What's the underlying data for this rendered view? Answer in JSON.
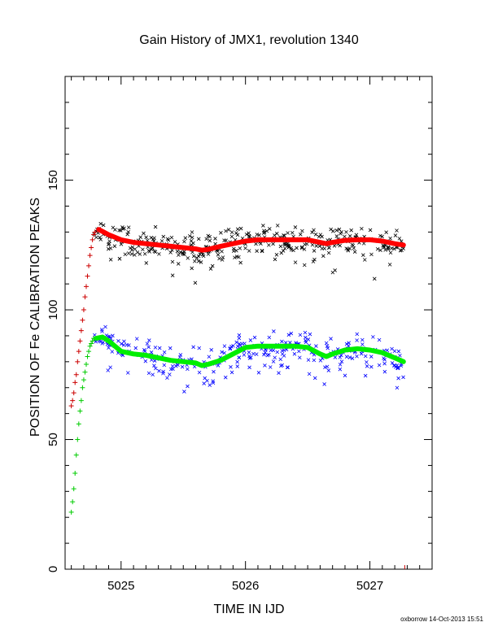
{
  "footer_text": "oxborrow 14-Oct-2013 15:51",
  "chart_data": {
    "type": "scatter",
    "title": "Gain History of JMX1, revolution 1340",
    "xlabel": "TIME IN IJD",
    "ylabel": "POSITION OF Fe CALIBRATION PEAKS",
    "xlim": [
      5024.55,
      5027.5
    ],
    "ylim": [
      0,
      190
    ],
    "xticks": [
      5025,
      5026,
      5027
    ],
    "yticks": [
      0,
      50,
      100,
      150
    ],
    "grid": false,
    "end_marker_x": 5027.28,
    "series": [
      {
        "role": "fit-upper",
        "style": "line",
        "color": "#ff0000",
        "points": [
          [
            4.82,
            131
          ],
          [
            4.9,
            129
          ],
          [
            5.0,
            127
          ],
          [
            5.1,
            126
          ],
          [
            5.2,
            125.5
          ],
          [
            5.3,
            125
          ],
          [
            5.4,
            124.5
          ],
          [
            5.5,
            124
          ],
          [
            5.6,
            123.5
          ],
          [
            5.65,
            123
          ],
          [
            5.7,
            123.3
          ],
          [
            5.8,
            124.5
          ],
          [
            5.9,
            125.5
          ],
          [
            6.0,
            126.5
          ],
          [
            6.1,
            127
          ],
          [
            6.2,
            127
          ],
          [
            6.3,
            127
          ],
          [
            6.4,
            127
          ],
          [
            6.5,
            127
          ],
          [
            6.6,
            126
          ],
          [
            6.65,
            125.5
          ],
          [
            6.7,
            126
          ],
          [
            6.8,
            126.8
          ],
          [
            6.9,
            127
          ],
          [
            7.0,
            127
          ],
          [
            7.1,
            126.5
          ],
          [
            7.2,
            125.5
          ],
          [
            7.27,
            125
          ]
        ]
      },
      {
        "role": "fit-lower",
        "style": "line",
        "color": "#00ee00",
        "points": [
          [
            4.8,
            89
          ],
          [
            4.85,
            89.5
          ],
          [
            4.9,
            88
          ],
          [
            4.95,
            86
          ],
          [
            5.0,
            84
          ],
          [
            5.1,
            83
          ],
          [
            5.2,
            82.5
          ],
          [
            5.3,
            81.5
          ],
          [
            5.4,
            80.5
          ],
          [
            5.5,
            80
          ],
          [
            5.6,
            79.5
          ],
          [
            5.65,
            78.5
          ],
          [
            5.7,
            79
          ],
          [
            5.8,
            80.5
          ],
          [
            5.9,
            83
          ],
          [
            6.0,
            85.5
          ],
          [
            6.1,
            86
          ],
          [
            6.2,
            86
          ],
          [
            6.3,
            86
          ],
          [
            6.4,
            86
          ],
          [
            6.5,
            85.5
          ],
          [
            6.6,
            83
          ],
          [
            6.65,
            82
          ],
          [
            6.7,
            83
          ],
          [
            6.8,
            84.5
          ],
          [
            6.9,
            85
          ],
          [
            7.0,
            84.5
          ],
          [
            7.1,
            83.5
          ],
          [
            7.2,
            81.5
          ],
          [
            7.27,
            80
          ]
        ]
      },
      {
        "role": "rise-upper",
        "style": "plus",
        "color": "#cc0000",
        "points": [
          [
            4.6,
            63
          ],
          [
            4.61,
            65
          ],
          [
            4.62,
            68
          ],
          [
            4.63,
            72
          ],
          [
            4.64,
            75
          ],
          [
            4.65,
            80
          ],
          [
            4.66,
            84
          ],
          [
            4.67,
            88
          ],
          [
            4.68,
            92
          ],
          [
            4.69,
            96
          ],
          [
            4.7,
            100
          ],
          [
            4.71,
            105
          ],
          [
            4.72,
            109
          ],
          [
            4.73,
            113
          ],
          [
            4.74,
            117
          ],
          [
            4.75,
            121
          ],
          [
            4.76,
            124
          ],
          [
            4.77,
            127
          ],
          [
            4.78,
            129
          ],
          [
            4.79,
            130
          ]
        ]
      },
      {
        "role": "rise-lower",
        "style": "plus",
        "color": "#00cc00",
        "points": [
          [
            4.6,
            22
          ],
          [
            4.61,
            26
          ],
          [
            4.62,
            31
          ],
          [
            4.63,
            37
          ],
          [
            4.64,
            44
          ],
          [
            4.65,
            50
          ],
          [
            4.66,
            56
          ],
          [
            4.67,
            61
          ],
          [
            4.68,
            65
          ],
          [
            4.69,
            70
          ],
          [
            4.7,
            73
          ],
          [
            4.71,
            76
          ],
          [
            4.72,
            79
          ],
          [
            4.73,
            82
          ],
          [
            4.74,
            84
          ],
          [
            4.75,
            86
          ],
          [
            4.76,
            87
          ],
          [
            4.77,
            88
          ],
          [
            4.78,
            89
          ]
        ]
      },
      {
        "role": "data-upper",
        "style": "cross",
        "color": "#000000",
        "x_start": 4.78,
        "x_end": 7.27,
        "count": 360,
        "follows": "fit-upper",
        "scatter_y": 2.8,
        "seed": 1340
      },
      {
        "role": "data-lower",
        "style": "cross",
        "color": "#0000ff",
        "x_start": 4.78,
        "x_end": 7.27,
        "count": 300,
        "follows": "fit-lower",
        "scatter_y": 2.8,
        "seed": 4021
      }
    ]
  }
}
